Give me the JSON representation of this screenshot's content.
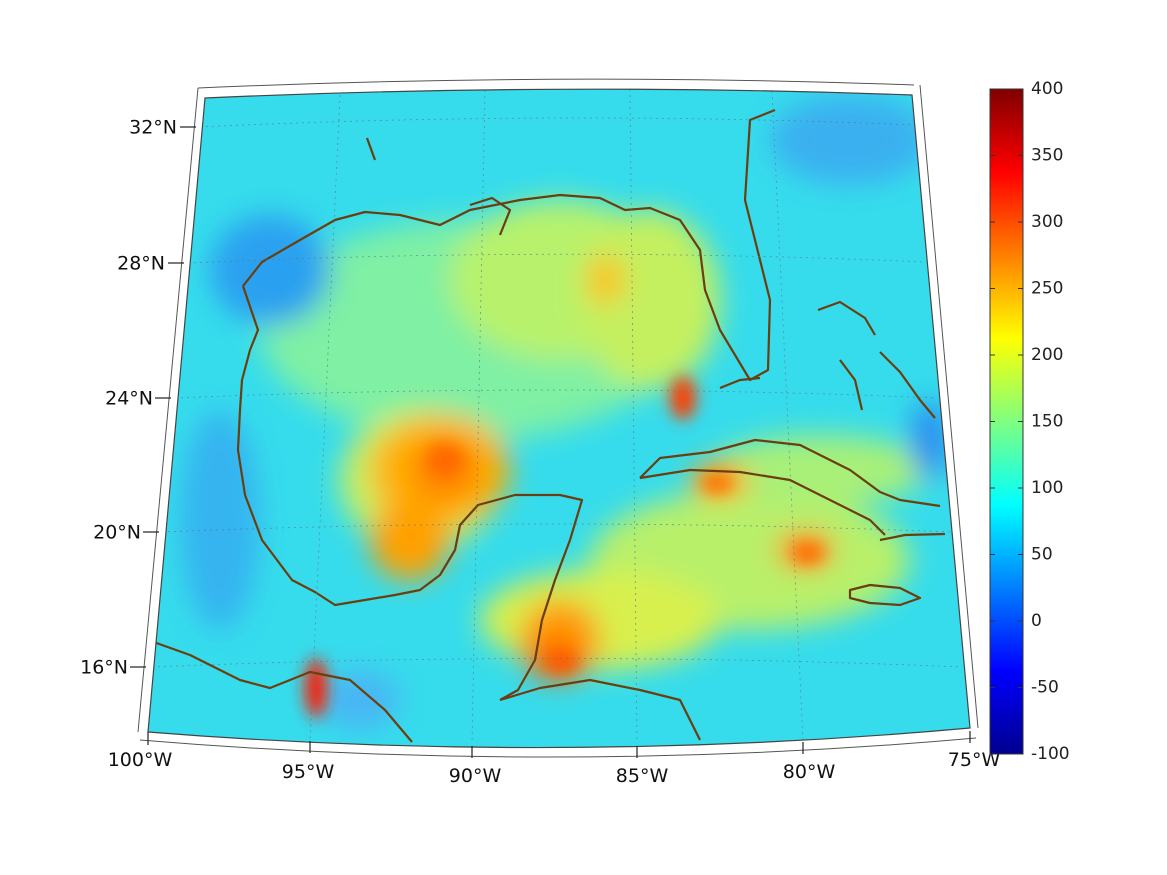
{
  "figure": {
    "type": "map",
    "projection": "conic",
    "lon_range": [
      -100,
      -75
    ],
    "lat_range": [
      14,
      33
    ],
    "grid": true,
    "coastline_color": "#6b3e0f",
    "colormap": "jet",
    "colorbar_placement": "right"
  },
  "axes": {
    "lat_labels": [
      "32°N",
      "28°N",
      "24°N",
      "20°N",
      "16°N"
    ],
    "lon_labels": [
      "100°W",
      "95°W",
      "90°W",
      "85°W",
      "80°W",
      "75°W"
    ]
  },
  "colorbar": {
    "range": [
      -100,
      400
    ],
    "tick_labels": [
      "400",
      "350",
      "300",
      "250",
      "200",
      "150",
      "100",
      "50",
      "0",
      "-50",
      "-100"
    ]
  },
  "field_features": [
    {
      "region": "central Gulf of Mexico",
      "level": 260
    },
    {
      "region": "Bay of Campeche",
      "level": 280
    },
    {
      "region": "Gulf of Honduras",
      "level": 300
    },
    {
      "region": "near 95°W 16°N",
      "level": 360
    },
    {
      "region": "north of Cuba",
      "level": 320
    },
    {
      "region": "central Cuba",
      "level": 290
    },
    {
      "region": "south of Cuba",
      "level": 300
    },
    {
      "region": "northeastern Gulf",
      "level": 270
    },
    {
      "region": "Texas coast",
      "level": 20
    },
    {
      "region": "Atlantic off Georgia",
      "level": 60
    }
  ]
}
